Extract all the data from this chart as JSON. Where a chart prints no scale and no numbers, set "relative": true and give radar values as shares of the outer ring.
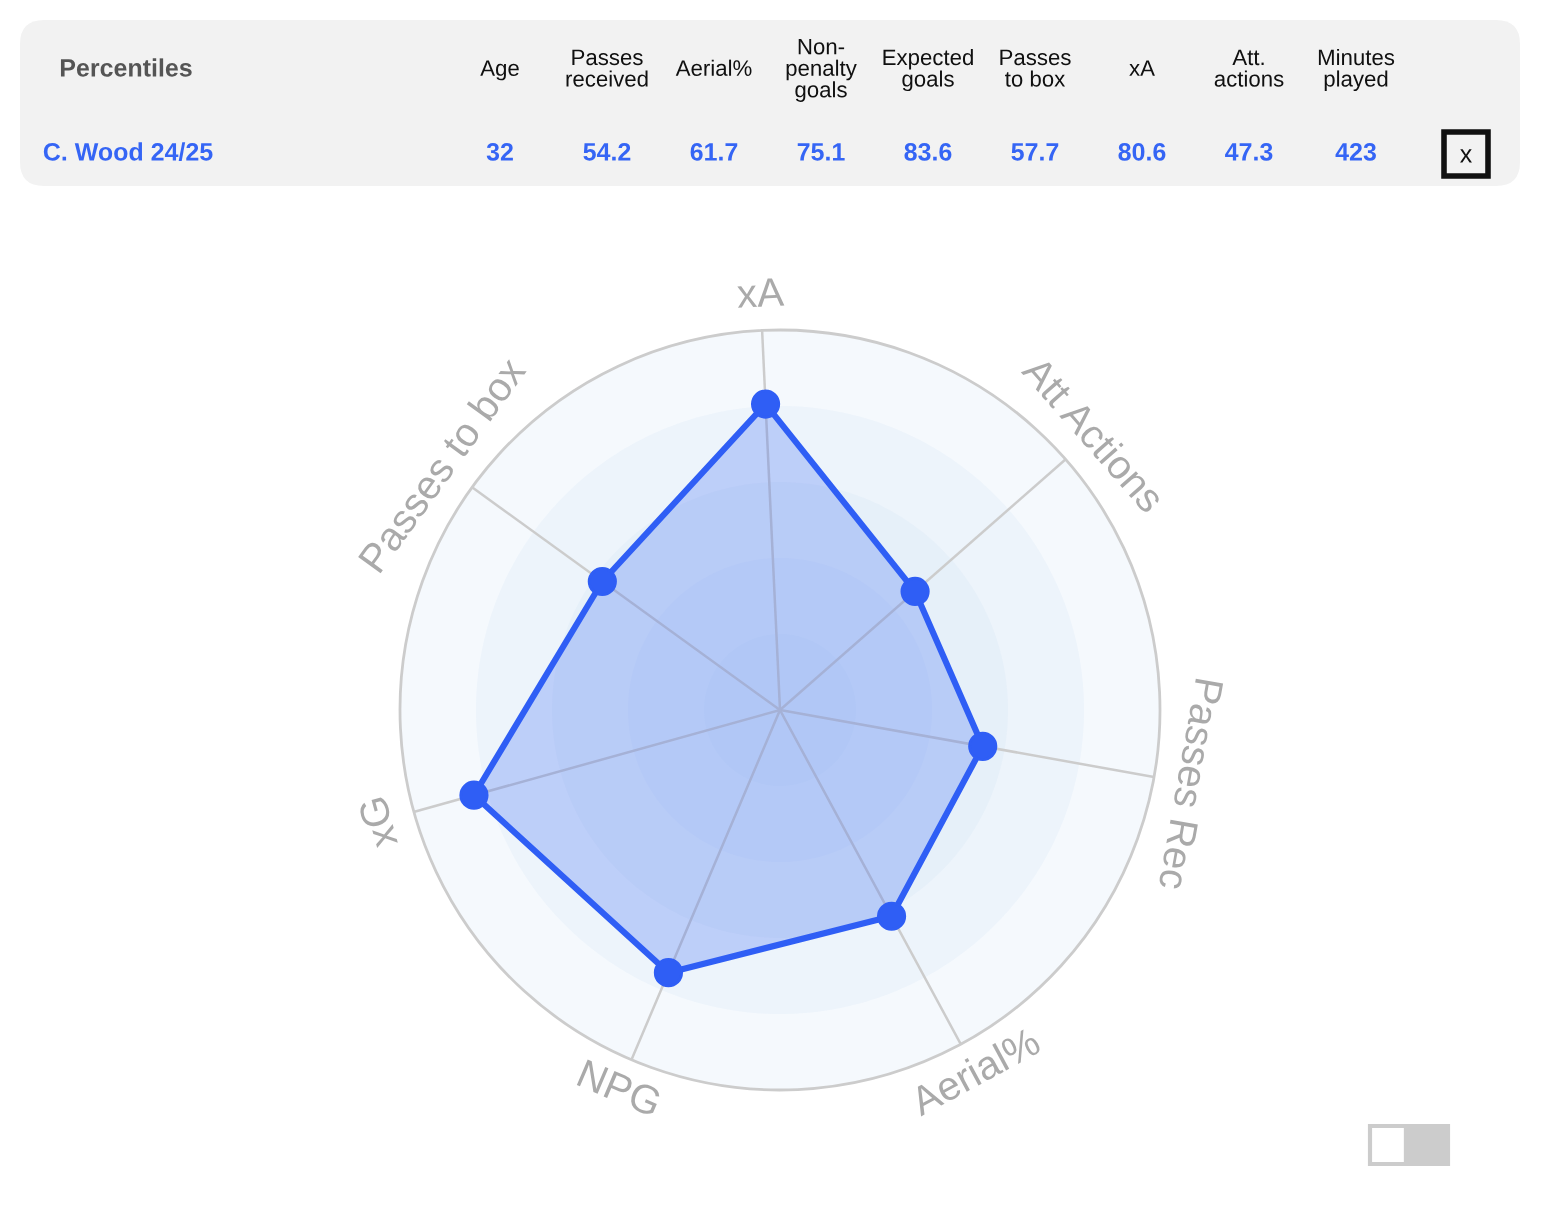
{
  "chart_data": [
    {
      "type": "other",
      "title": "Percentiles",
      "categories": [
        "Age",
        "Passes\nreceived",
        "Aerial%",
        "Non-\npenalty\ngoals",
        "Expected\ngoals",
        "Passes\nto box",
        "xA",
        "Att.\nactions",
        "Minutes\nplayed"
      ],
      "values": [
        32,
        54.2,
        61.7,
        75.1,
        83.6,
        57.7,
        80.6,
        47.3,
        423
      ],
      "data_labels": true,
      "annotations": [
        "C. Wood 24/25",
        "x"
      ]
    },
    {
      "type": "radar",
      "relative": true,
      "categories": [
        "xA",
        "Att Actions",
        "Passes Rec",
        "Aerial%",
        "NPG",
        "xG",
        "Passes to box"
      ],
      "series": [
        {
          "color": "#2f5ef5",
          "values": [
            0.806,
            0.473,
            0.542,
            0.617,
            0.751,
            0.836,
            0.577
          ]
        }
      ],
      "grid": true,
      "marker": "circle",
      "line_style": "solid"
    }
  ]
}
